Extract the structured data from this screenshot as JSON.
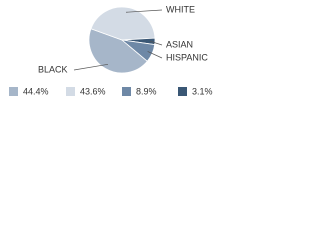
{
  "chart_data": {
    "type": "pie",
    "categories": [
      "BLACK",
      "WHITE",
      "HISPANIC",
      "ASIAN"
    ],
    "values": [
      44.4,
      43.6,
      8.9,
      3.1
    ],
    "value_labels": [
      "44.4%",
      "43.6%",
      "8.9%",
      "3.1%"
    ],
    "colors": [
      "#a6b6c9",
      "#d3dbe5",
      "#6e88a6",
      "#3a5775"
    ]
  }
}
